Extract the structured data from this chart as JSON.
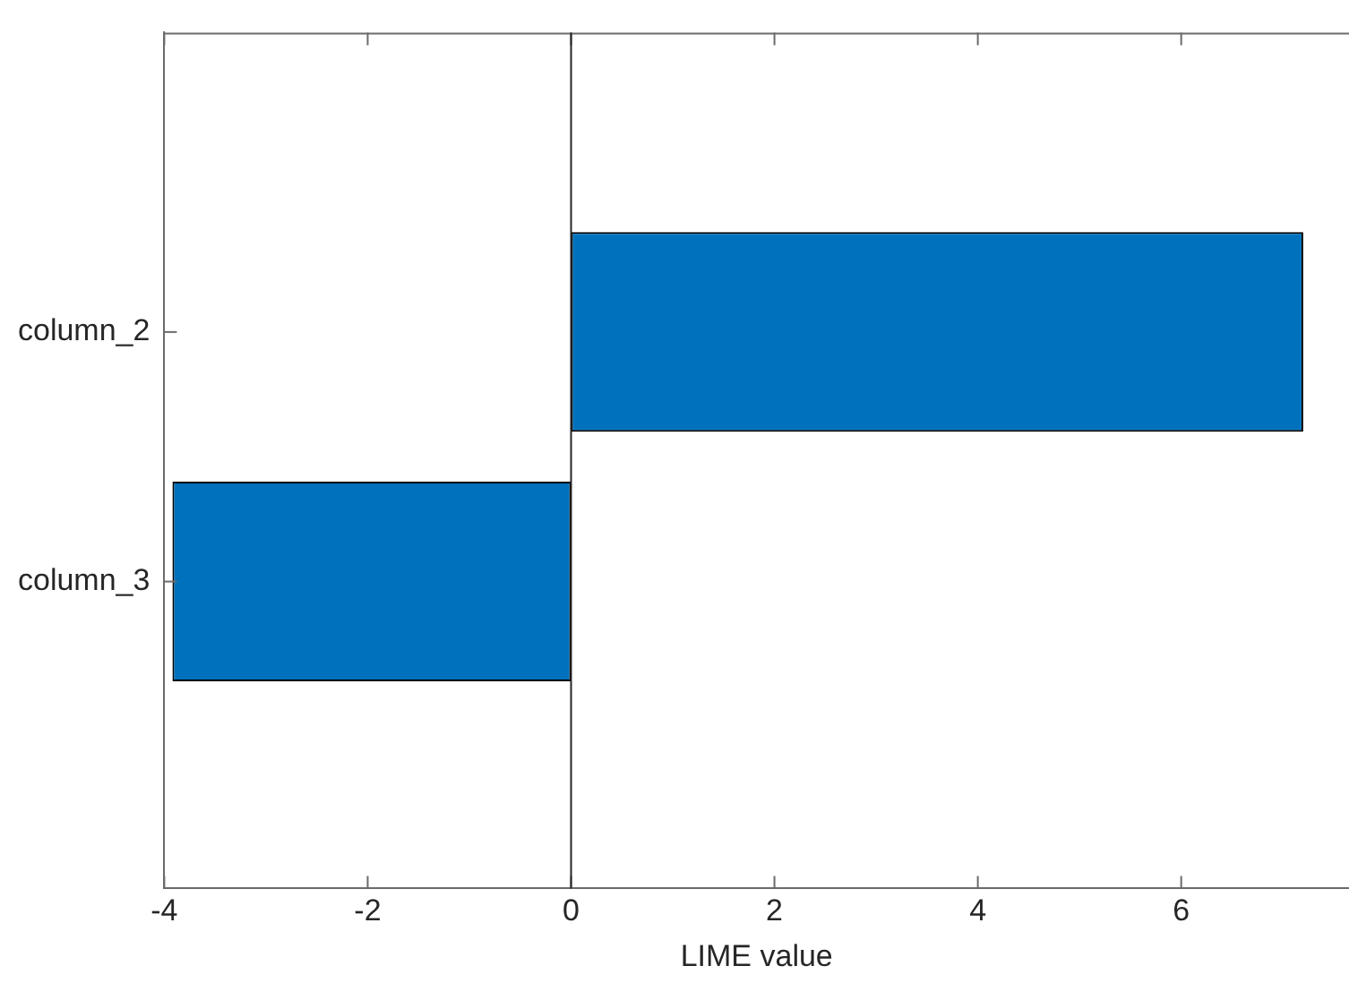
{
  "chart_data": {
    "type": "bar",
    "orientation": "horizontal",
    "xlabel": "LIME value",
    "categories": [
      "column_2",
      "column_3"
    ],
    "values": [
      7.2,
      -3.92
    ],
    "color": "#0072bd",
    "xlim": [
      -4,
      7.65
    ],
    "xticks": [
      -4,
      -2,
      0,
      2,
      4,
      6
    ],
    "grid": false,
    "ref_lines": [
      {
        "axis": "x",
        "value": 0,
        "color": "#262626"
      }
    ],
    "legend": false
  }
}
